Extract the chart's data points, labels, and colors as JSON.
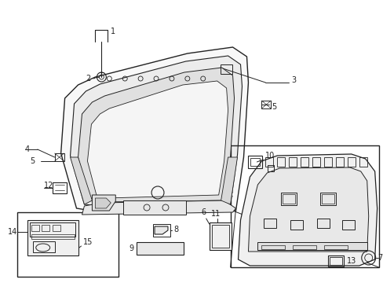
{
  "background_color": "#ffffff",
  "line_color": "#222222",
  "fig_width": 4.89,
  "fig_height": 3.6,
  "dpi": 100,
  "fs": 7.0
}
